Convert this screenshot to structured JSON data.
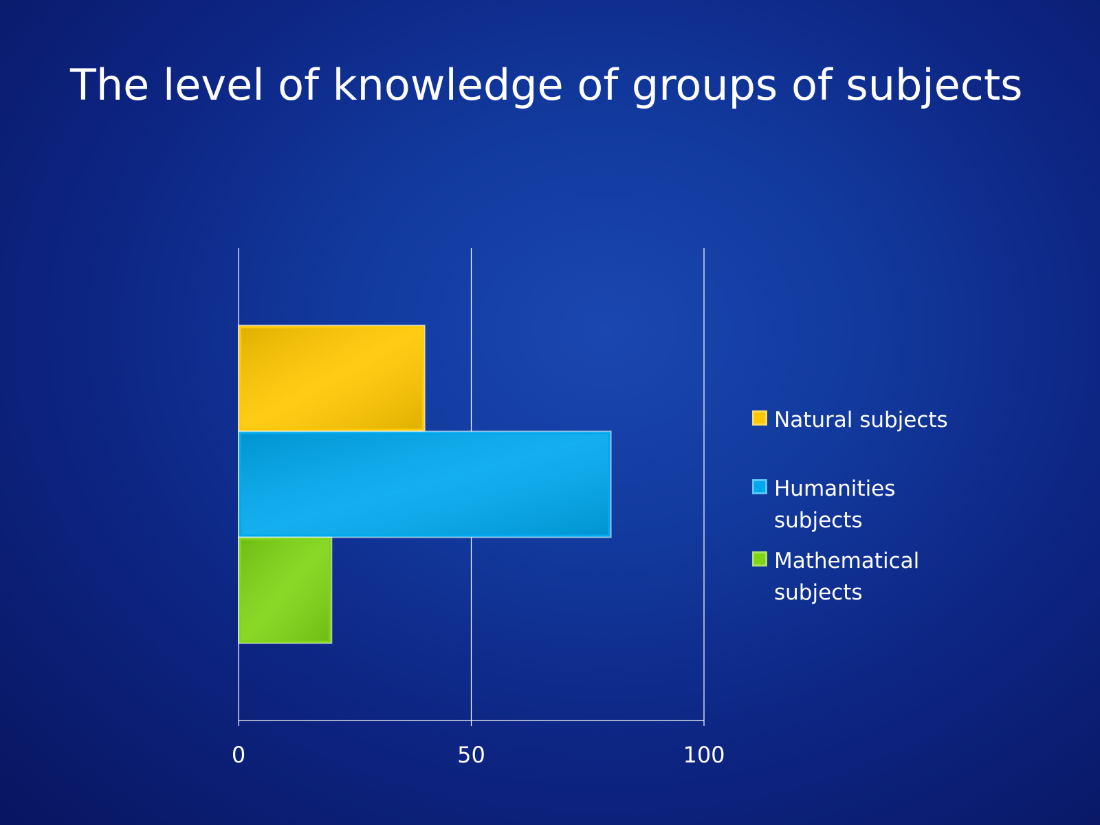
{
  "chart_data": {
    "type": "bar",
    "orientation": "horizontal",
    "title": "The level of knowledge of groups of subjects",
    "categories": [
      null
    ],
    "series": [
      {
        "name": "Natural subjects",
        "color": "#ffc800",
        "values": [
          40
        ]
      },
      {
        "name": "Humanities subjects",
        "color": "#00a8ee",
        "values": [
          80
        ]
      },
      {
        "name": "Mathematical subjects",
        "color": "#7fd515",
        "values": [
          20
        ]
      }
    ],
    "xlim": [
      0,
      100
    ],
    "xticks": [
      0,
      50,
      100
    ],
    "grid": true,
    "legend": "right"
  }
}
